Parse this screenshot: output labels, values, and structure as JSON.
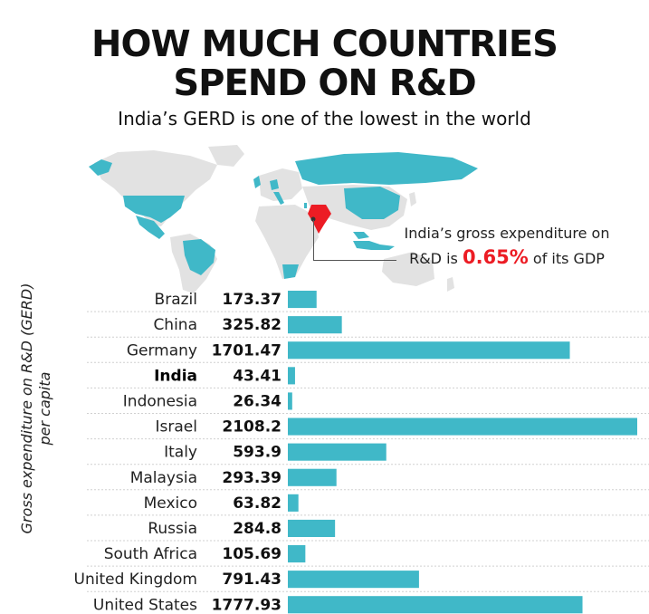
{
  "colors": {
    "bar": "#40b8c8",
    "highlight": "#ec1c24",
    "map_land": "#e2e2e2"
  },
  "header": {
    "title_line1": "HOW MUCH COUNTRIES",
    "title_line2": "SPEND ON R&D",
    "subtitle": "India’s GERD is one of the lowest in the world"
  },
  "callout": {
    "line1": "India’s gross expenditure on",
    "line2_before": "R&D is",
    "line2_value": "0.65%",
    "line2_after": "of its GDP"
  },
  "chart_data": {
    "type": "bar",
    "orientation": "horizontal",
    "ylabel": "Gross expenditure on R&D (GERD) per capita",
    "categories": [
      "Brazil",
      "China",
      "Germany",
      "India",
      "Indonesia",
      "Israel",
      "Italy",
      "Malaysia",
      "Mexico",
      "Russia",
      "South Africa",
      "United Kingdom",
      "United States"
    ],
    "value_labels": [
      "173.37",
      "325.82",
      "1701.47",
      "43.41",
      "26.34",
      "2108.2",
      "593.9",
      "293.39",
      "63.82",
      "284.8",
      "105.69",
      "791.43",
      "1777.93"
    ],
    "values": [
      173.37,
      325.82,
      1701.47,
      43.41,
      26.34,
      2108.2,
      593.9,
      293.39,
      63.82,
      284.8,
      105.69,
      791.43,
      1777.93
    ],
    "highlight": "India",
    "xlim": [
      0,
      2108.2
    ],
    "grid": false,
    "legend": false
  }
}
